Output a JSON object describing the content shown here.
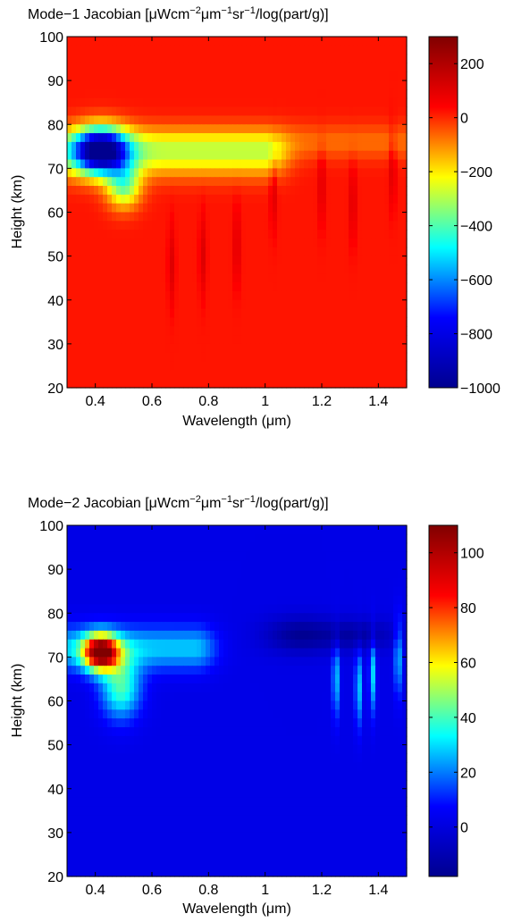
{
  "colors": {
    "jet": [
      "#00008F",
      "#0000FF",
      "#00FFFF",
      "#FFFF00",
      "#FF0000",
      "#800000"
    ]
  },
  "chart_data": [
    {
      "type": "heatmap",
      "title": {
        "pre": "Mode−1 Jacobian [μWcm",
        "sup1": "−2",
        "mid1": "μm",
        "sup2": "−1",
        "mid2": "sr",
        "sup3": "−1",
        "post": "/log(part/g)]"
      },
      "xlabel": "Wavelength (μm)",
      "ylabel": "Height (km)",
      "xlim": [
        0.3,
        1.5
      ],
      "ylim": [
        20,
        100
      ],
      "clim": [
        -1000,
        300
      ],
      "xticks": [
        0.4,
        0.6,
        0.8,
        1.0,
        1.2,
        1.4
      ],
      "xtick_labels": [
        "0.4",
        "0.6",
        "0.8",
        "1",
        "1.2",
        "1.4"
      ],
      "yticks": [
        20,
        30,
        40,
        50,
        60,
        70,
        80,
        90,
        100
      ],
      "ytick_labels": [
        "20",
        "30",
        "40",
        "50",
        "60",
        "70",
        "80",
        "90",
        "100"
      ],
      "cticks": [
        -1000,
        -800,
        -600,
        -400,
        -200,
        0,
        200
      ],
      "ctick_labels": [
        "−1000",
        "−800",
        "−600",
        "−400",
        "−200",
        "0",
        "200"
      ],
      "background_value": 20,
      "features": [
        {
          "kind": "blob",
          "x": 0.42,
          "y": 74,
          "sx": 0.09,
          "sy": 5,
          "value": -900
        },
        {
          "kind": "blob",
          "x": 0.5,
          "y": 66,
          "sx": 0.06,
          "sy": 5,
          "value": -350
        },
        {
          "kind": "band",
          "x0": 0.3,
          "x1": 1.0,
          "y": 73,
          "sy": 5,
          "value": -230
        },
        {
          "kind": "band",
          "x0": 0.3,
          "x1": 1.5,
          "y": 76,
          "sy": 4,
          "value": -70
        },
        {
          "kind": "spikes",
          "x": [
            1.03,
            1.2,
            1.31,
            1.45,
            0.9,
            0.67,
            0.78
          ],
          "y": [
            65,
            66,
            62,
            70,
            52,
            48,
            50
          ],
          "value": 110
        }
      ]
    },
    {
      "type": "heatmap",
      "title": {
        "pre": "Mode−2 Jacobian [μWcm",
        "sup1": "−2",
        "mid1": "μm",
        "sup2": "−1",
        "mid2": "sr",
        "sup3": "−1",
        "post": "/log(part/g)]"
      },
      "xlabel": "Wavelength (μm)",
      "ylabel": "Height (km)",
      "xlim": [
        0.3,
        1.5
      ],
      "ylim": [
        20,
        100
      ],
      "clim": [
        -18,
        110
      ],
      "xticks": [
        0.4,
        0.6,
        0.8,
        1.0,
        1.2,
        1.4
      ],
      "xtick_labels": [
        "0.4",
        "0.6",
        "0.8",
        "1",
        "1.2",
        "1.4"
      ],
      "yticks": [
        20,
        30,
        40,
        50,
        60,
        70,
        80,
        90,
        100
      ],
      "ytick_labels": [
        "20",
        "30",
        "40",
        "50",
        "60",
        "70",
        "80",
        "90",
        "100"
      ],
      "cticks": [
        0,
        20,
        40,
        60,
        80,
        100
      ],
      "ctick_labels": [
        "0",
        "20",
        "40",
        "60",
        "80",
        "100"
      ],
      "background_value": 2,
      "features": [
        {
          "kind": "blob",
          "x": 0.42,
          "y": 71,
          "sx": 0.06,
          "sy": 4,
          "value": 100
        },
        {
          "kind": "blob",
          "x": 0.49,
          "y": 63,
          "sx": 0.07,
          "sy": 7,
          "value": 40
        },
        {
          "kind": "band",
          "x0": 0.3,
          "x1": 0.75,
          "y": 72,
          "sy": 5,
          "value": 28
        },
        {
          "kind": "blob",
          "x": 1.12,
          "y": 75,
          "sx": 0.12,
          "sy": 4,
          "value": -16
        },
        {
          "kind": "blob",
          "x": 1.33,
          "y": 75,
          "sx": 0.13,
          "sy": 3.5,
          "value": -13
        },
        {
          "kind": "spikes",
          "x": [
            1.25,
            1.33,
            1.38,
            1.47
          ],
          "y": [
            65,
            63,
            66,
            70
          ],
          "value": 30
        }
      ]
    }
  ]
}
